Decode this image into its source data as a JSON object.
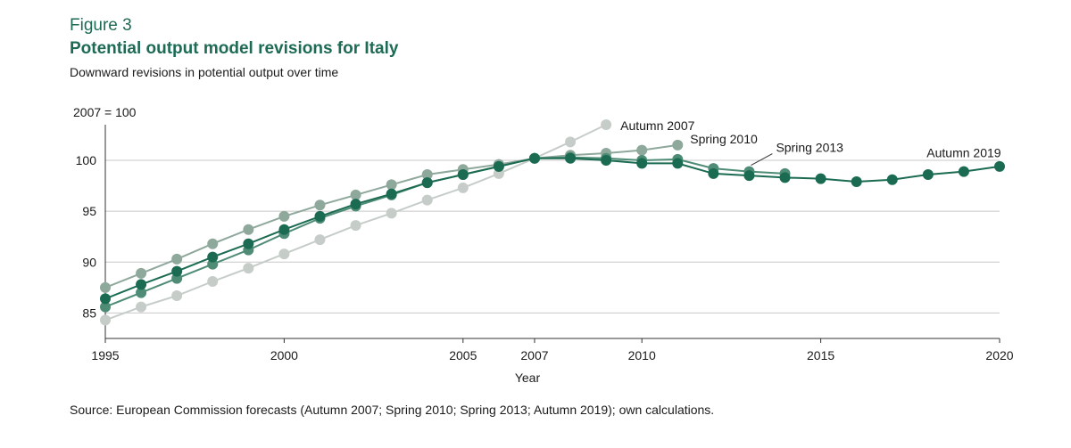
{
  "figure": {
    "label": "Figure 3",
    "title": "Potential output model revisions for Italy",
    "subtitle": "Downward revisions in potential output over time",
    "source": "Source: European Commission forecasts (Autumn 2007; Spring 2010; Spring 2013; Autumn 2019); own calculations."
  },
  "chart_data": {
    "type": "line",
    "title": "Potential output model revisions for Italy",
    "xlabel": "Year",
    "ylabel": "2007 = 100",
    "xlim": [
      1995,
      2020
    ],
    "ylim": [
      82.5,
      103.5
    ],
    "yticks": [
      85,
      90,
      95,
      100
    ],
    "xticks": [
      1995,
      2000,
      2005,
      2007,
      2010,
      2015,
      2020
    ],
    "grid": true,
    "series": [
      {
        "name": "Autumn 2007",
        "color": "#c6cdc8",
        "label_year": 2009,
        "x": [
          1995,
          1996,
          1997,
          1998,
          1999,
          2000,
          2001,
          2002,
          2003,
          2004,
          2005,
          2006,
          2007,
          2008,
          2009
        ],
        "values": [
          84.3,
          85.6,
          86.7,
          88.1,
          89.4,
          90.8,
          92.2,
          93.6,
          94.8,
          96.1,
          97.3,
          98.7,
          100.2,
          101.8,
          103.5
        ]
      },
      {
        "name": "Spring 2010",
        "color": "#8fa89c",
        "label_year": 2011,
        "x": [
          1995,
          1996,
          1997,
          1998,
          1999,
          2000,
          2001,
          2002,
          2003,
          2004,
          2005,
          2006,
          2007,
          2008,
          2009,
          2010,
          2011
        ],
        "values": [
          87.5,
          88.9,
          90.3,
          91.8,
          93.2,
          94.5,
          95.6,
          96.6,
          97.6,
          98.6,
          99.1,
          99.6,
          100.2,
          100.5,
          100.7,
          101.0,
          101.5
        ]
      },
      {
        "name": "Spring 2013",
        "color": "#4f8c76",
        "label_year": 2013,
        "x": [
          1995,
          1996,
          1997,
          1998,
          1999,
          2000,
          2001,
          2002,
          2003,
          2004,
          2005,
          2006,
          2007,
          2008,
          2009,
          2010,
          2011,
          2012,
          2013,
          2014
        ],
        "values": [
          85.6,
          87.0,
          88.4,
          89.8,
          91.2,
          92.8,
          94.3,
          95.5,
          96.6,
          97.8,
          98.6,
          99.4,
          100.2,
          100.3,
          100.2,
          100.0,
          100.1,
          99.2,
          98.9,
          98.7
        ]
      },
      {
        "name": "Autumn 2019",
        "color": "#1b6b52",
        "label_year": 2019,
        "x": [
          1995,
          1996,
          1997,
          1998,
          1999,
          2000,
          2001,
          2002,
          2003,
          2004,
          2005,
          2006,
          2007,
          2008,
          2009,
          2010,
          2011,
          2012,
          2013,
          2014,
          2015,
          2016,
          2017,
          2018,
          2019,
          2020
        ],
        "values": [
          86.4,
          87.8,
          89.1,
          90.5,
          91.8,
          93.2,
          94.5,
          95.7,
          96.7,
          97.8,
          98.6,
          99.4,
          100.2,
          100.2,
          100.0,
          99.7,
          99.7,
          98.7,
          98.5,
          98.3,
          98.2,
          97.9,
          98.1,
          98.6,
          98.9,
          99.4
        ]
      }
    ]
  }
}
